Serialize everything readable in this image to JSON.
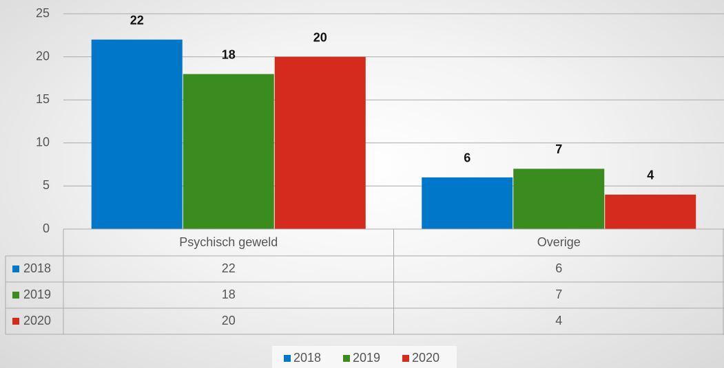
{
  "chart_data": {
    "type": "bar",
    "categories": [
      "Psychisch geweld",
      "Overige"
    ],
    "series": [
      {
        "name": "2018",
        "color": "#0077c8",
        "values": [
          22,
          6
        ]
      },
      {
        "name": "2019",
        "color": "#3a8c1e",
        "values": [
          18,
          7
        ]
      },
      {
        "name": "2020",
        "color": "#d52b1e",
        "values": [
          20,
          4
        ]
      }
    ],
    "ylim": [
      0,
      25
    ],
    "yticks": [
      0,
      5,
      10,
      15,
      20,
      25
    ],
    "grid": true,
    "legend": "bottom",
    "data_table": true
  }
}
